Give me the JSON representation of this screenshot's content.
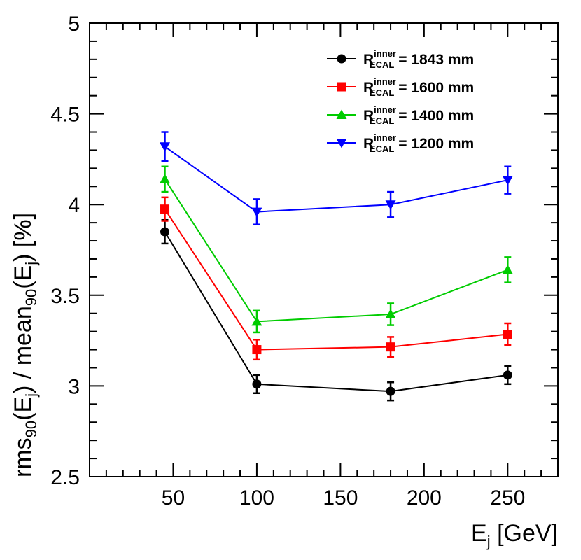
{
  "chart_data": {
    "type": "line",
    "title": "",
    "xlabel": {
      "main": "E",
      "sub": "j",
      "rest": " [GeV]"
    },
    "ylabel": {
      "p1": "rms",
      "s1": "90",
      "p2": "(E",
      "s2": "j",
      "p3": ") / mean",
      "s3": "90",
      "p4": "(E",
      "s4": "j",
      "p5": ") [%]"
    },
    "xlim": [
      0,
      280
    ],
    "ylim": [
      2.5,
      5.0
    ],
    "xticks": [
      50,
      100,
      150,
      200,
      250
    ],
    "yticks": [
      2.5,
      3,
      3.5,
      4,
      4.5,
      5
    ],
    "xtick_labels": [
      "50",
      "100",
      "150",
      "200",
      "250"
    ],
    "ytick_labels": [
      "2.5",
      "3",
      "3.5",
      "4",
      "4.5",
      "5"
    ],
    "x": [
      45,
      100,
      180,
      250
    ],
    "legend_placement": "top-right",
    "series": [
      {
        "name": {
          "main": "R",
          "sup": "inner",
          "sub": "ECAL",
          "rest": " = 1843 mm"
        },
        "color": "#000000",
        "marker": "circle",
        "values": [
          3.85,
          3.01,
          2.97,
          3.06
        ],
        "errors": [
          0.065,
          0.05,
          0.05,
          0.05
        ]
      },
      {
        "name": {
          "main": "R",
          "sup": "inner",
          "sub": "ECAL",
          "rest": " = 1600 mm"
        },
        "color": "#ff0000",
        "marker": "square",
        "values": [
          3.975,
          3.2,
          3.215,
          3.285
        ],
        "errors": [
          0.065,
          0.055,
          0.055,
          0.06
        ]
      },
      {
        "name": {
          "main": "R",
          "sup": "inner",
          "sub": "ECAL",
          "rest": " = 1400 mm"
        },
        "color": "#00cc00",
        "marker": "triangle-up",
        "values": [
          4.14,
          3.355,
          3.395,
          3.64
        ],
        "errors": [
          0.07,
          0.06,
          0.06,
          0.07
        ]
      },
      {
        "name": {
          "main": "R",
          "sup": "inner",
          "sub": "ECAL",
          "rest": " = 1200 mm"
        },
        "color": "#0000ff",
        "marker": "triangle-down",
        "values": [
          4.32,
          3.96,
          4.0,
          4.135
        ],
        "errors": [
          0.08,
          0.07,
          0.07,
          0.075
        ]
      }
    ]
  }
}
